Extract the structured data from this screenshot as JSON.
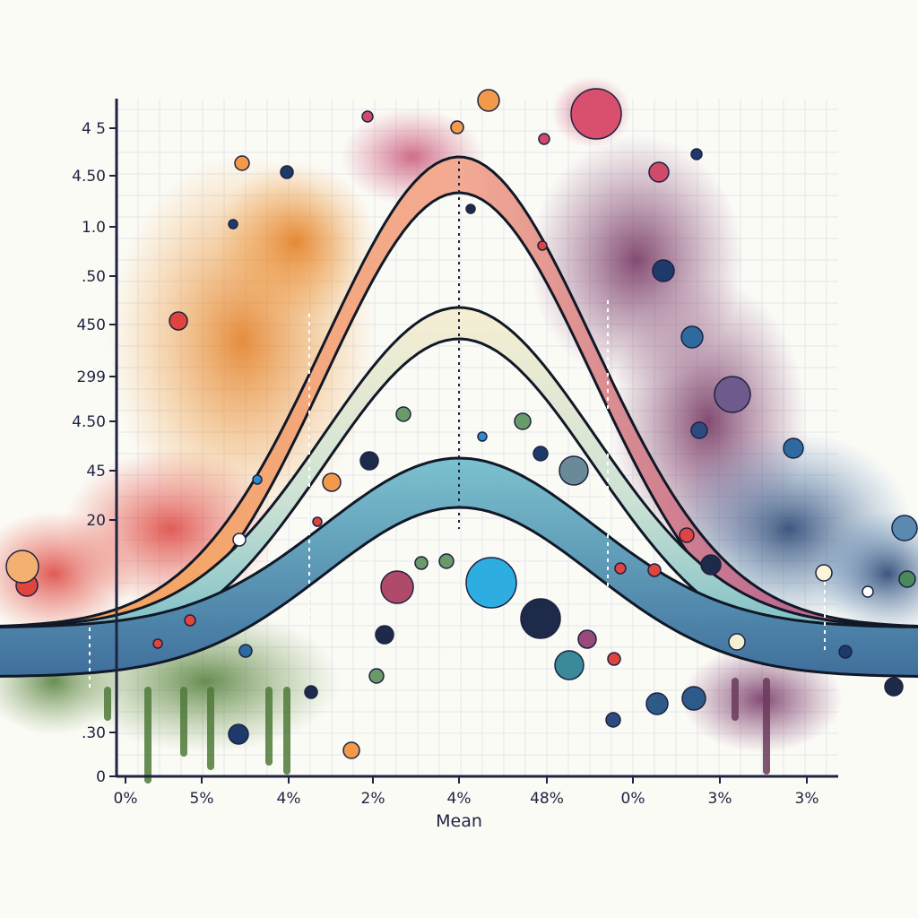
{
  "chart_data": {
    "type": "area",
    "title": "",
    "xlabel": "Mean",
    "ylabel": "",
    "grid": true,
    "legend": "none",
    "x_tick_labels": [
      "0%",
      "5%",
      "4%",
      "2%",
      "4%",
      "48%",
      "0%",
      "3%",
      "3%"
    ],
    "y_tick_labels": [
      "0",
      ".30",
      "20",
      "45",
      "4.50",
      "299",
      "450",
      ".50",
      "1.0",
      "4.50",
      "4 5"
    ],
    "curve_peaks_estimated": [
      0.83,
      0.62,
      0.41
    ],
    "series": [
      {
        "name": "",
        "peak": 0.83,
        "colors": [
          "#f4a24a",
          "#e0788a",
          "#a64f8e"
        ]
      },
      {
        "name": "",
        "peak": 0.62,
        "colors": [
          "#f3e3a6",
          "#d8e8d8",
          "#6db8c4"
        ]
      },
      {
        "name": "",
        "peak": 0.41,
        "colors": [
          "#5a9bc0",
          "#5fb3c4",
          "#3d6f9a"
        ]
      }
    ],
    "colors": {
      "axis": "#1d2340",
      "grid": "#e3e6e9",
      "outline": "#111827"
    }
  }
}
